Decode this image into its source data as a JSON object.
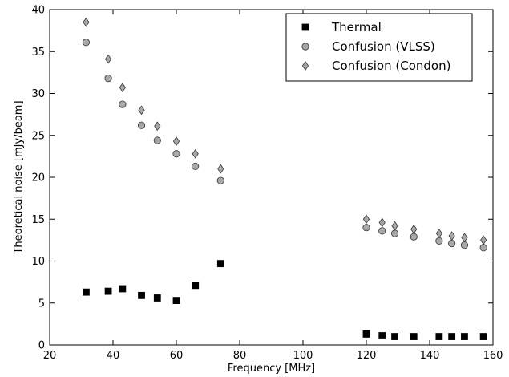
{
  "chart_data": {
    "type": "scatter",
    "xlabel": "Frequency [MHz]",
    "ylabel": "Theoretical noise [mJy/beam]",
    "xlim": [
      20,
      160
    ],
    "ylim": [
      0,
      40
    ],
    "xticks": [
      20,
      40,
      60,
      80,
      100,
      120,
      140,
      160
    ],
    "yticks": [
      0,
      5,
      10,
      15,
      20,
      25,
      30,
      35,
      40
    ],
    "grid": false,
    "legend_position": "top-right",
    "series": [
      {
        "name": "Thermal",
        "marker": "square",
        "color": "#000000",
        "x": [
          31.5,
          38.5,
          43,
          49,
          54,
          60,
          66,
          74,
          120,
          125,
          129,
          135,
          143,
          147,
          151,
          157
        ],
        "y": [
          6.3,
          6.4,
          6.7,
          5.9,
          5.6,
          5.3,
          7.1,
          9.7,
          1.3,
          1.1,
          1.0,
          1.0,
          1.0,
          1.0,
          1.0,
          1.0
        ]
      },
      {
        "name": "Confusion (VLSS)",
        "marker": "circle",
        "color": "#a8a8a8",
        "x": [
          31.5,
          38.5,
          43,
          49,
          54,
          60,
          66,
          74,
          120,
          125,
          129,
          135,
          143,
          147,
          151,
          157
        ],
        "y": [
          36.1,
          31.8,
          28.7,
          26.2,
          24.4,
          22.8,
          21.3,
          19.6,
          14.0,
          13.6,
          13.3,
          12.9,
          12.4,
          12.1,
          11.9,
          11.6
        ]
      },
      {
        "name": "Confusion (Condon)",
        "marker": "diamond",
        "color": "#a8a8a8",
        "x": [
          31.5,
          38.5,
          43,
          49,
          54,
          60,
          66,
          74,
          120,
          125,
          129,
          135,
          143,
          147,
          151,
          157
        ],
        "y": [
          38.5,
          34.1,
          30.7,
          28.0,
          26.1,
          24.3,
          22.8,
          21.0,
          15.0,
          14.6,
          14.2,
          13.8,
          13.3,
          13.0,
          12.8,
          12.5
        ]
      }
    ]
  }
}
